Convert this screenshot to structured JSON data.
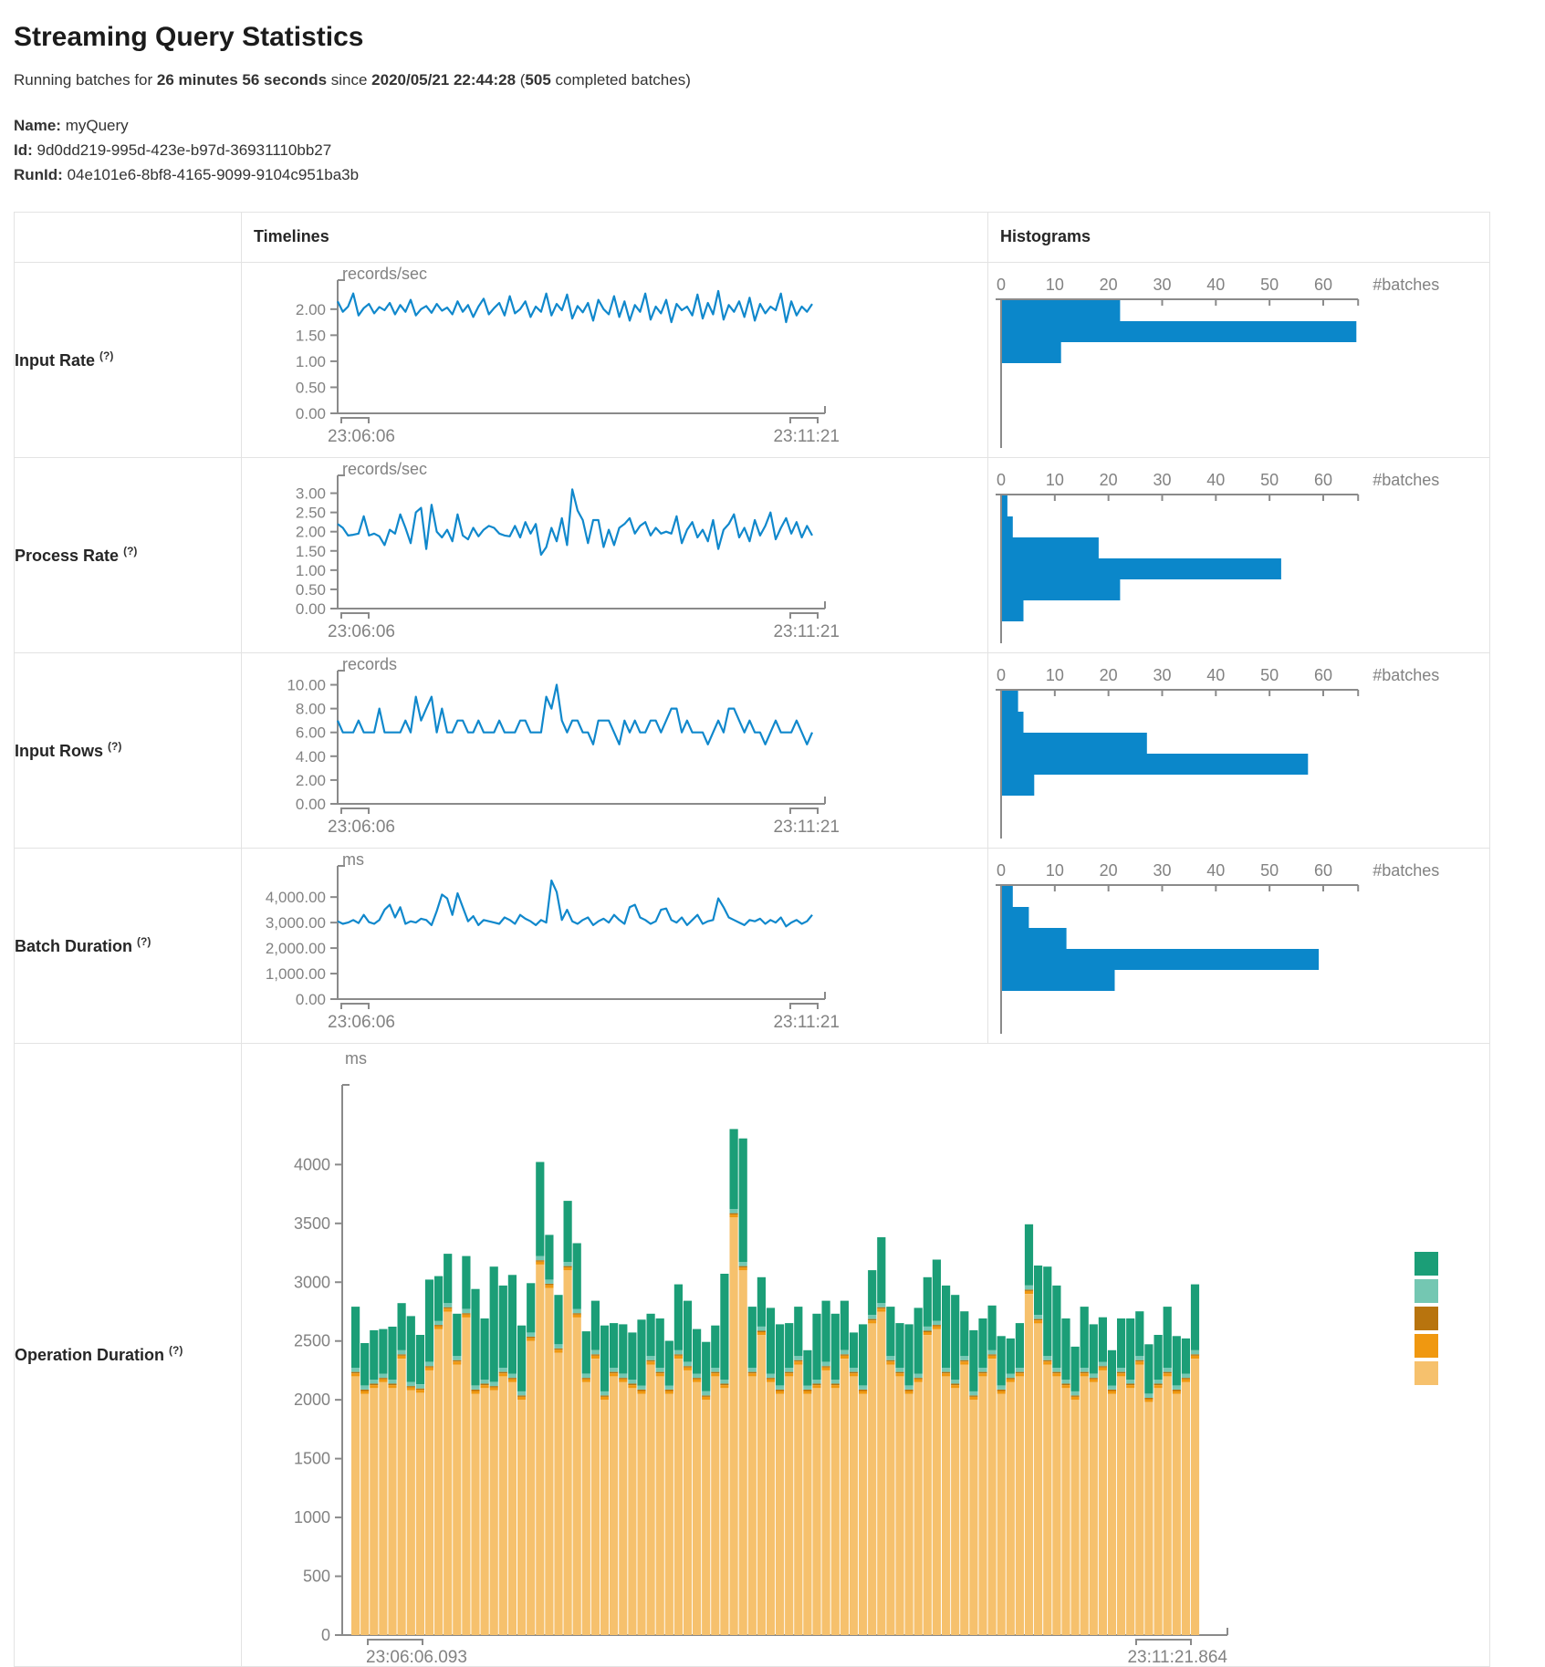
{
  "header": {
    "title": "Streaming Query Statistics",
    "running": {
      "prefix": "Running batches for ",
      "duration": "26 minutes 56 seconds",
      "since_word": " since ",
      "start_time": "2020/05/21 22:44:28",
      "open_paren": " (",
      "completed_count": "505",
      "suffix": " completed batches)"
    }
  },
  "meta": {
    "name_label": "Name:",
    "name_value": "myQuery",
    "id_label": "Id:",
    "id_value": "9d0dd219-995d-423e-b97d-36931110bb27",
    "runid_label": "RunId:",
    "runid_value": "04e101e6-8bf8-4165-9099-9104c951ba3b"
  },
  "table": {
    "timelines_header": "Timelines",
    "histograms_header": "Histograms"
  },
  "colors": {
    "line": "#1088cc",
    "bar": "#0b87ca",
    "axis": "#8a8a8a",
    "tick_text": "#828282"
  },
  "rows": [
    {
      "label": "Input Rate",
      "help": "(?)",
      "timeline": {
        "type": "line",
        "unit": "records/sec",
        "x_start": "23:06:06",
        "x_end": "23:11:21",
        "ymax": 2.4,
        "yticks": [
          {
            "v": 2,
            "t": "2.00"
          },
          {
            "v": 1.5,
            "t": "1.50"
          },
          {
            "v": 1,
            "t": "1.00"
          },
          {
            "v": 0.5,
            "t": "0.50"
          },
          {
            "v": 0,
            "t": "0.00"
          }
        ],
        "values": [
          2.15,
          1.95,
          2.05,
          2.3,
          1.88,
          2.02,
          2.1,
          1.92,
          2.04,
          1.98,
          2.12,
          1.9,
          2.08,
          1.95,
          2.18,
          1.88,
          2.0,
          2.06,
          1.93,
          2.1,
          1.97,
          2.03,
          1.9,
          2.15,
          1.95,
          2.08,
          1.85,
          2.05,
          2.2,
          1.9,
          2.02,
          2.12,
          1.88,
          2.25,
          1.92,
          2.0,
          2.15,
          1.85,
          2.05,
          1.95,
          2.3,
          1.88,
          2.1,
          1.98,
          2.28,
          1.82,
          2.06,
          1.94,
          2.12,
          1.78,
          2.18,
          2.0,
          1.9,
          2.25,
          1.85,
          2.15,
          1.78,
          2.08,
          1.95,
          2.3,
          1.8,
          2.05,
          1.92,
          2.18,
          1.75,
          2.1,
          1.98,
          2.05,
          1.88,
          2.28,
          1.82,
          2.12,
          1.9,
          2.35,
          1.8,
          2.08,
          1.95,
          2.15,
          1.85,
          2.22,
          1.78,
          2.1,
          1.92,
          2.05,
          1.98,
          2.3,
          1.75,
          2.15,
          1.88,
          2.05,
          1.95,
          2.1
        ]
      },
      "histogram": {
        "type": "bar",
        "xlabel": "#batches",
        "ticks": [
          0,
          10,
          20,
          30,
          40,
          50,
          60
        ],
        "axis_end": 66.5,
        "bins": [
          22,
          66,
          11
        ]
      }
    },
    {
      "label": "Process Rate",
      "help": "(?)",
      "timeline": {
        "type": "line",
        "unit": "records/sec",
        "x_start": "23:06:06",
        "x_end": "23:11:21",
        "ymax": 3.25,
        "yticks": [
          {
            "v": 3,
            "t": "3.00"
          },
          {
            "v": 2.5,
            "t": "2.50"
          },
          {
            "v": 2,
            "t": "2.00"
          },
          {
            "v": 1.5,
            "t": "1.50"
          },
          {
            "v": 1,
            "t": "1.00"
          },
          {
            "v": 0.5,
            "t": "0.50"
          },
          {
            "v": 0,
            "t": "0.00"
          }
        ],
        "values": [
          2.2,
          2.1,
          1.9,
          1.92,
          1.95,
          2.4,
          1.9,
          1.95,
          1.88,
          1.65,
          2.05,
          1.95,
          2.45,
          2.1,
          1.7,
          2.5,
          2.62,
          1.55,
          2.7,
          2.0,
          1.85,
          2.05,
          1.75,
          2.45,
          1.9,
          1.8,
          2.1,
          1.88,
          2.05,
          2.15,
          2.1,
          1.95,
          1.9,
          1.88,
          2.15,
          1.85,
          2.25,
          1.95,
          2.2,
          1.4,
          1.6,
          2.1,
          1.75,
          2.35,
          1.65,
          3.1,
          2.55,
          2.3,
          1.7,
          2.3,
          2.3,
          1.6,
          2.05,
          1.65,
          2.1,
          2.2,
          2.35,
          1.95,
          2.15,
          2.25,
          1.9,
          2.1,
          1.95,
          2.0,
          1.95,
          2.4,
          1.7,
          2.05,
          2.25,
          1.85,
          2.05,
          1.75,
          2.3,
          1.55,
          2.05,
          2.2,
          2.45,
          1.85,
          2.1,
          1.75,
          2.3,
          1.9,
          2.15,
          2.5,
          1.8,
          2.1,
          2.35,
          1.95,
          2.25,
          1.85,
          2.15,
          1.9
        ]
      },
      "histogram": {
        "type": "bar",
        "xlabel": "#batches",
        "ticks": [
          0,
          10,
          20,
          30,
          40,
          50,
          60
        ],
        "axis_end": 66.5,
        "bins": [
          1,
          2,
          18,
          52,
          22,
          4
        ]
      }
    },
    {
      "label": "Input Rows",
      "help": "(?)",
      "timeline": {
        "type": "line",
        "unit": "records",
        "x_start": "23:06:06",
        "x_end": "23:11:21",
        "ymax": 10.5,
        "yticks": [
          {
            "v": 10,
            "t": "10.00"
          },
          {
            "v": 8,
            "t": "8.00"
          },
          {
            "v": 6,
            "t": "6.00"
          },
          {
            "v": 4,
            "t": "4.00"
          },
          {
            "v": 2,
            "t": "2.00"
          },
          {
            "v": 0,
            "t": "0.00"
          }
        ],
        "values": [
          7,
          6,
          6,
          6,
          7,
          6,
          6,
          6,
          8,
          6,
          6,
          6,
          6,
          7,
          6,
          9,
          7,
          8,
          9,
          6,
          8,
          6,
          6,
          7,
          7,
          6,
          6,
          7,
          6,
          6,
          6,
          7,
          6,
          6,
          6,
          7,
          7,
          6,
          6,
          6,
          9,
          8,
          10,
          7,
          6,
          7,
          7,
          6,
          6,
          5,
          7,
          7,
          7,
          6,
          5,
          7,
          6,
          7,
          6,
          6,
          7,
          7,
          6,
          7,
          8,
          8,
          6,
          7,
          6,
          6,
          6,
          5,
          6,
          7,
          6,
          8,
          8,
          7,
          6,
          7,
          6,
          6,
          5,
          6,
          7,
          6,
          6,
          6,
          7,
          6,
          5,
          6
        ]
      },
      "histogram": {
        "type": "bar",
        "xlabel": "#batches",
        "ticks": [
          0,
          10,
          20,
          30,
          40,
          50,
          60
        ],
        "axis_end": 66.5,
        "bins": [
          3,
          4,
          27,
          57,
          6
        ]
      }
    },
    {
      "label": "Batch Duration",
      "help": "(?)",
      "timeline": {
        "type": "line",
        "unit": "ms",
        "x_start": "23:06:06",
        "x_end": "23:11:21",
        "ymax": 4900,
        "yticks": [
          {
            "v": 4000,
            "t": "4,000.00"
          },
          {
            "v": 3000,
            "t": "3,000.00"
          },
          {
            "v": 2000,
            "t": "2,000.00"
          },
          {
            "v": 1000,
            "t": "1,000.00"
          },
          {
            "v": 0,
            "t": "0.00"
          }
        ],
        "values": [
          3050,
          2950,
          3000,
          3100,
          2980,
          3300,
          3020,
          2950,
          3100,
          3500,
          3700,
          3200,
          3600,
          2950,
          3050,
          3000,
          3150,
          3100,
          2900,
          3450,
          4100,
          3950,
          3300,
          4150,
          3600,
          3050,
          3250,
          2900,
          3100,
          3050,
          3000,
          2950,
          3200,
          3100,
          2950,
          3300,
          3150,
          3050,
          2900,
          3100,
          3000,
          4650,
          4200,
          3100,
          3500,
          3050,
          2950,
          3100,
          3200,
          2900,
          3050,
          3150,
          3000,
          3300,
          3100,
          2950,
          3600,
          3700,
          3200,
          3100,
          2950,
          3050,
          3500,
          3550,
          3100,
          3000,
          3200,
          2900,
          3100,
          3300,
          2950,
          3050,
          3100,
          3950,
          3600,
          3200,
          3100,
          3000,
          2900,
          3100,
          3050,
          3150,
          2950,
          3100,
          3000,
          3200,
          2850,
          3000,
          3100,
          2950,
          3050,
          3300
        ]
      },
      "histogram": {
        "type": "bar",
        "xlabel": "#batches",
        "ticks": [
          0,
          10,
          20,
          30,
          40,
          50,
          60
        ],
        "axis_end": 66.5,
        "bins": [
          2,
          5,
          12,
          59,
          21
        ]
      }
    },
    {
      "label": "Operation Duration",
      "help": "(?)",
      "stacked": {
        "type": "stacked-bar",
        "unit": "ms",
        "x_start": "23:06:06.093",
        "x_end": "23:11:21.864",
        "ymax": 4600,
        "yticks": [
          {
            "v": 4000,
            "t": "4000"
          },
          {
            "v": 3500,
            "t": "3500"
          },
          {
            "v": 3000,
            "t": "3000"
          },
          {
            "v": 2500,
            "t": "2500"
          },
          {
            "v": 2000,
            "t": "2000"
          },
          {
            "v": 1500,
            "t": "1500"
          },
          {
            "v": 1000,
            "t": "1000"
          },
          {
            "v": 500,
            "t": "500"
          },
          {
            "v": 0,
            "t": "0"
          }
        ],
        "series": [
          {
            "name": "green",
            "color": "#1b9e77",
            "values": [
              520,
              360,
              420,
              380,
              450,
              400,
              560,
              420,
              700,
              380,
              420,
              360,
              450,
              820,
              520,
              980,
              700,
              840,
              560,
              420,
              800,
              380,
              420,
              520,
              560,
              360,
              420,
              560,
              380,
              420,
              400,
              560,
              360,
              420,
              380,
              560,
              520,
              380,
              420,
              360,
              900,
              680,
              1050,
              520,
              420,
              560,
              520,
              380,
              420,
              300,
              560,
              520,
              560,
              420,
              300,
              520,
              380,
              560,
              420,
              380,
              520,
              560,
              420,
              520,
              700,
              720,
              380,
              520,
              420,
              380,
              420,
              300,
              380,
              520,
              420,
              760,
              700,
              520,
              380,
              520,
              420,
              380,
              300,
              420,
              520,
              380,
              420,
              380,
              520,
              420,
              300,
              560
            ]
          },
          {
            "name": "light-teal",
            "color": "#74c7b2",
            "constant": 35
          },
          {
            "name": "dark-ochre",
            "color": "#b8740e",
            "constant": 12
          },
          {
            "name": "orange",
            "color": "#f09810",
            "constant": 25
          },
          {
            "name": "tan",
            "color": "#f6c16d",
            "values": [
              2200,
              2050,
              2100,
              2150,
              2100,
              2350,
              2080,
              2060,
              2250,
              2600,
              2750,
              2300,
              2700,
              2050,
              2100,
              2080,
              2200,
              2150,
              2000,
              2500,
              3150,
              2950,
              2400,
              3100,
              2700,
              2150,
              2350,
              2000,
              2200,
              2150,
              2100,
              2050,
              2300,
              2200,
              2050,
              2350,
              2250,
              2150,
              2000,
              2200,
              2100,
              3550,
              3100,
              2200,
              2550,
              2150,
              2050,
              2200,
              2300,
              2050,
              2100,
              2250,
              2100,
              2350,
              2200,
              2050,
              2650,
              2750,
              2300,
              2200,
              2050,
              2150,
              2550,
              2600,
              2200,
              2100,
              2300,
              2000,
              2200,
              2350,
              2050,
              2150,
              2200,
              2900,
              2650,
              2300,
              2200,
              2100,
              2000,
              2200,
              2150,
              2250,
              2050,
              2200,
              2100,
              2300,
              1980,
              2100,
              2200,
              2050,
              2150,
              2350
            ]
          }
        ]
      }
    }
  ]
}
